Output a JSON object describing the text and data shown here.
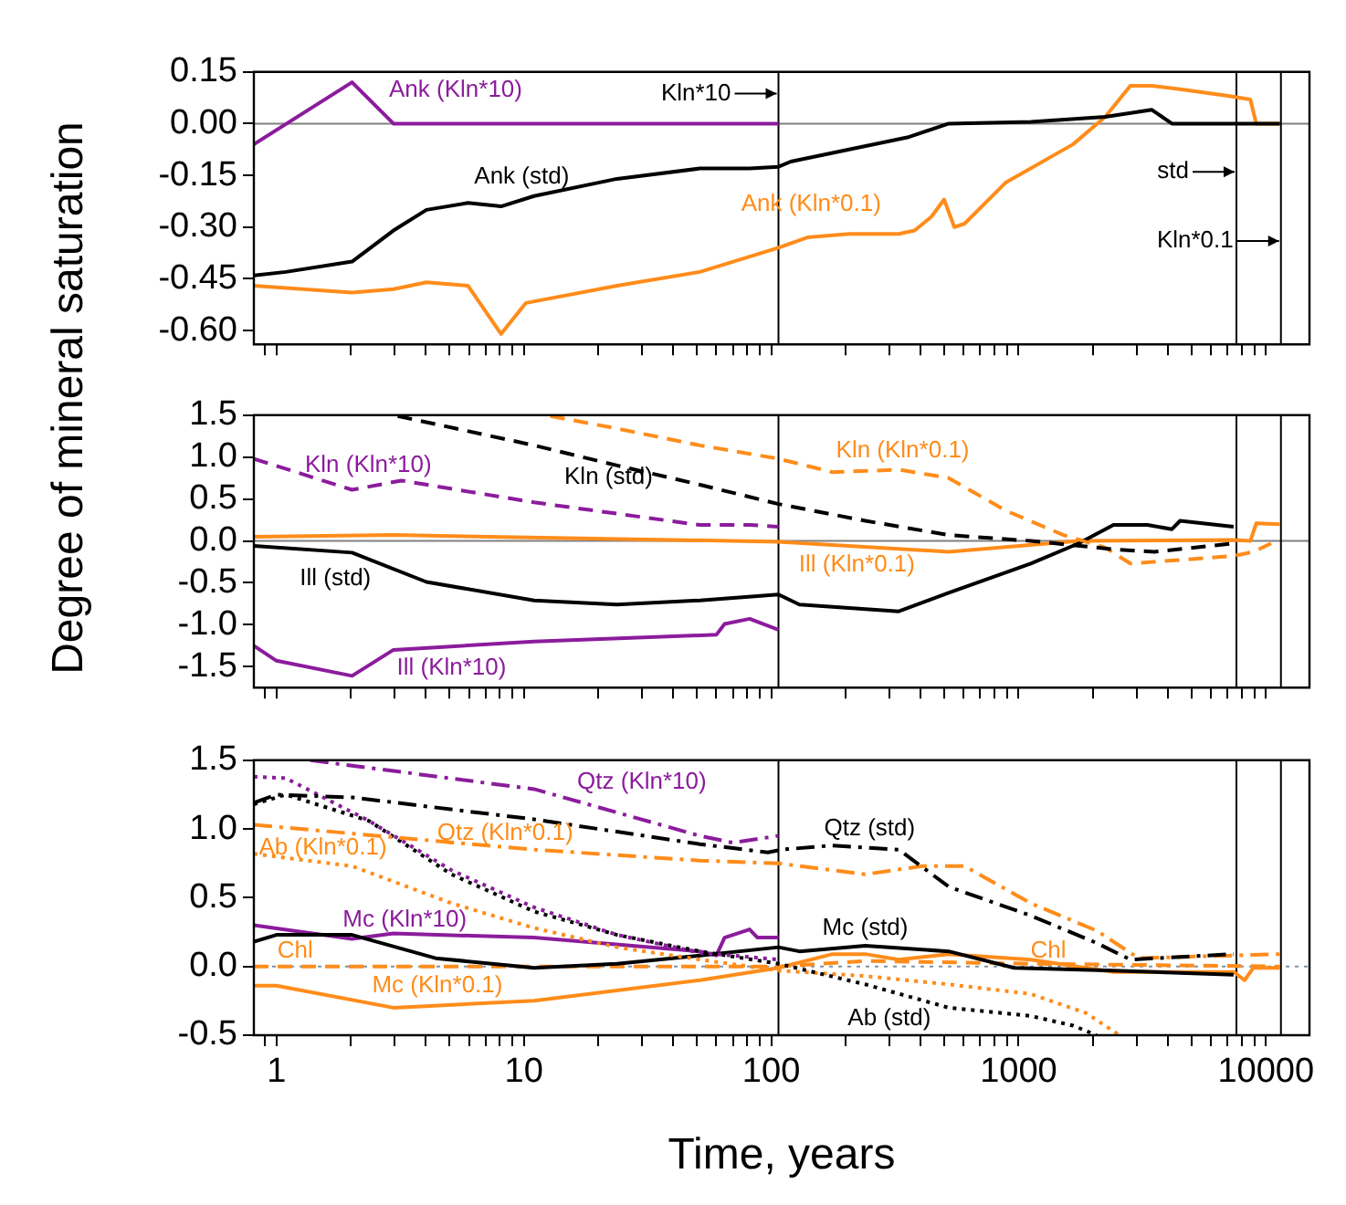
{
  "chart_data": [
    {
      "type": "line",
      "ylabel": "Degree of mineral saturation",
      "xlim": [
        0.81,
        15000
      ],
      "log": "x",
      "tick_labels": "y",
      "ylim": [
        -0.64,
        0.15
      ],
      "xticks": [
        {
          "value": 0.9,
          "label": null
        },
        1,
        {
          "value": 2,
          "label": null
        },
        {
          "value": 3,
          "label": null
        },
        {
          "value": 4,
          "label": null
        },
        {
          "value": 5,
          "label": null
        },
        {
          "value": 6,
          "label": null
        },
        {
          "value": 7,
          "label": null
        },
        {
          "value": 8,
          "label": null
        },
        {
          "value": 9,
          "label": null
        },
        10,
        {
          "value": 20,
          "label": null
        },
        {
          "value": 30,
          "label": null
        },
        {
          "value": 40,
          "label": null
        },
        {
          "value": 50,
          "label": null
        },
        {
          "value": 60,
          "label": null
        },
        {
          "value": 70,
          "label": null
        },
        {
          "value": 80,
          "label": null
        },
        {
          "value": 90,
          "label": null
        },
        100,
        {
          "value": 200,
          "label": null
        },
        {
          "value": 300,
          "label": null
        },
        {
          "value": 400,
          "label": null
        },
        {
          "value": 500,
          "label": null
        },
        {
          "value": 600,
          "label": null
        },
        {
          "value": 700,
          "label": null
        },
        {
          "value": 800,
          "label": null
        },
        {
          "value": 900,
          "label": null
        },
        1000,
        {
          "value": 2000,
          "label": null
        },
        {
          "value": 3000,
          "label": null
        },
        {
          "value": 4000,
          "label": null
        },
        {
          "value": 5000,
          "label": null
        },
        {
          "value": 6000,
          "label": null
        },
        {
          "value": 7000,
          "label": null
        },
        {
          "value": 8000,
          "label": null
        },
        {
          "value": 9000,
          "label": null
        },
        10000
      ],
      "yticks": [
        {
          "value": 0.15,
          "label": "0.15"
        },
        {
          "value": 0,
          "label": "0.00"
        },
        {
          "value": -0.15,
          "label": "-0.15"
        },
        {
          "value": -0.3,
          "label": "-0.30"
        },
        {
          "value": -0.45,
          "label": "-0.45"
        },
        {
          "value": -0.6,
          "label": "-0.60"
        }
      ],
      "ref_lines": [
        {
          "axis": "y",
          "value": 0,
          "color": "#808080"
        },
        {
          "axis": "x",
          "value": 107,
          "label": "Kln*10",
          "color": "#000000"
        },
        {
          "axis": "x",
          "value": 7600,
          "label": "std",
          "color": "#000000"
        },
        {
          "axis": "x",
          "value": 11500,
          "label": "Kln*0.1",
          "color": "#000000"
        }
      ],
      "series": [
        {
          "name": "Ank (Kln*10)",
          "color": "#8b1c9c",
          "line_style": "solid",
          "x": [
            0.81,
            2.02,
            2.97,
            107
          ],
          "values": [
            -0.06,
            0.12,
            0,
            0
          ]
        },
        {
          "name": "Ank (std)",
          "color": "#000000",
          "line_style": "solid",
          "x": [
            0.81,
            1.09,
            2.02,
            2.97,
            4.04,
            5.94,
            8.09,
            11,
            23.8,
            51.5,
            81.8,
            107,
            120,
            177,
            355,
            522,
            1120,
            2240,
            3460,
            4170,
            11400
          ],
          "values": [
            -0.44,
            -0.43,
            -0.4,
            -0.31,
            -0.25,
            -0.23,
            -0.24,
            -0.21,
            -0.16,
            -0.13,
            -0.13,
            -0.125,
            -0.11,
            -0.085,
            -0.04,
            0,
            0.005,
            0.02,
            0.04,
            0,
            0
          ]
        },
        {
          "name": "Ank (Kln*0.1)",
          "color": "#ff8c1a",
          "line_style": "solid",
          "x": [
            0.81,
            2.02,
            2.97,
            4.04,
            5.94,
            8.09,
            10.2,
            23.8,
            51.5,
            107,
            140,
            207,
            328,
            380,
            444,
            500,
            550,
            605,
            890,
            1660,
            2240,
            2830,
            3460,
            4500,
            7130,
            8650,
            9140,
            11400
          ],
          "values": [
            -0.47,
            -0.49,
            -0.48,
            -0.46,
            -0.47,
            -0.61,
            -0.52,
            -0.47,
            -0.43,
            -0.36,
            -0.33,
            -0.32,
            -0.32,
            -0.31,
            -0.27,
            -0.22,
            -0.3,
            -0.29,
            -0.17,
            -0.06,
            0.02,
            0.11,
            0.11,
            0.1,
            0.08,
            0.07,
            0,
            0
          ]
        }
      ]
    },
    {
      "type": "line",
      "xlim": [
        0.81,
        15000
      ],
      "log": "x",
      "tick_labels": "y",
      "ylim": [
        -1.75,
        1.5
      ],
      "xticks": [
        {
          "value": 0.9,
          "label": null
        },
        1,
        {
          "value": 2,
          "label": null
        },
        {
          "value": 3,
          "label": null
        },
        {
          "value": 4,
          "label": null
        },
        {
          "value": 5,
          "label": null
        },
        {
          "value": 6,
          "label": null
        },
        {
          "value": 7,
          "label": null
        },
        {
          "value": 8,
          "label": null
        },
        {
          "value": 9,
          "label": null
        },
        10,
        {
          "value": 20,
          "label": null
        },
        {
          "value": 30,
          "label": null
        },
        {
          "value": 40,
          "label": null
        },
        {
          "value": 50,
          "label": null
        },
        {
          "value": 60,
          "label": null
        },
        {
          "value": 70,
          "label": null
        },
        {
          "value": 80,
          "label": null
        },
        {
          "value": 90,
          "label": null
        },
        100,
        {
          "value": 200,
          "label": null
        },
        {
          "value": 300,
          "label": null
        },
        {
          "value": 400,
          "label": null
        },
        {
          "value": 500,
          "label": null
        },
        {
          "value": 600,
          "label": null
        },
        {
          "value": 700,
          "label": null
        },
        {
          "value": 800,
          "label": null
        },
        {
          "value": 900,
          "label": null
        },
        1000,
        {
          "value": 2000,
          "label": null
        },
        {
          "value": 3000,
          "label": null
        },
        {
          "value": 4000,
          "label": null
        },
        {
          "value": 5000,
          "label": null
        },
        {
          "value": 6000,
          "label": null
        },
        {
          "value": 7000,
          "label": null
        },
        {
          "value": 8000,
          "label": null
        },
        {
          "value": 9000,
          "label": null
        },
        10000
      ],
      "yticks": [
        1.5,
        {
          "value": 1,
          "label": "1.0"
        },
        0.5,
        {
          "value": 0,
          "label": "0.0"
        },
        -0.5,
        {
          "value": -1,
          "label": "-1.0"
        },
        -1.5
      ],
      "ref_lines": [
        {
          "axis": "y",
          "value": 0,
          "color": "#808080"
        },
        {
          "axis": "x",
          "value": 107,
          "color": "#000000"
        },
        {
          "axis": "x",
          "value": 7600,
          "color": "#000000"
        },
        {
          "axis": "x",
          "value": 11500,
          "color": "#000000"
        }
      ],
      "series": [
        {
          "name": "Kln (std)",
          "color": "#000000",
          "line_style": "dashed",
          "x": [
            3.09,
            11,
            23.8,
            51.5,
            107,
            240,
            522,
            1120,
            2420,
            3540,
            7400
          ],
          "values": [
            1.49,
            1.14,
            0.9,
            0.67,
            0.44,
            0.24,
            0.07,
            0,
            -0.1,
            -0.13,
            -0.03
          ]
        },
        {
          "name": "Kln (Kln*0.1)",
          "color": "#ff8c1a",
          "line_style": "dashed",
          "x": [
            12.8,
            23.8,
            51.5,
            107,
            177,
            328,
            522,
            890,
            1520,
            2240,
            2830,
            7400,
            8900,
            10500
          ],
          "values": [
            1.49,
            1.34,
            1.14,
            0.98,
            0.82,
            0.85,
            0.75,
            0.36,
            0.07,
            -0.08,
            -0.27,
            -0.18,
            -0.13,
            -0.03
          ]
        },
        {
          "name": "Kln (Kln*10)",
          "color": "#8b1c9c",
          "line_style": "dashed",
          "x": [
            0.81,
            2.02,
            3.2,
            11,
            51.5,
            81.8,
            107
          ],
          "values": [
            0.98,
            0.61,
            0.72,
            0.46,
            0.19,
            0.19,
            0.17
          ]
        },
        {
          "name": "Ill (std)",
          "color": "#000000",
          "line_style": "solid",
          "x": [
            0.81,
            2.02,
            4.04,
            11,
            23.8,
            51.5,
            107,
            130,
            328,
            522,
            1120,
            1750,
            2420,
            3320,
            4170,
            4500,
            7400
          ],
          "values": [
            -0.06,
            -0.14,
            -0.49,
            -0.71,
            -0.76,
            -0.71,
            -0.64,
            -0.76,
            -0.84,
            -0.62,
            -0.27,
            -0.03,
            0.19,
            0.19,
            0.14,
            0.24,
            0.17
          ]
        },
        {
          "name": "Ill (Kln*0.1)",
          "color": "#ff8c1a",
          "line_style": "solid",
          "x": [
            0.81,
            2.97,
            107,
            522,
            1750,
            7400,
            8650,
            9140,
            11400
          ],
          "values": [
            0.05,
            0.07,
            -0.01,
            -0.13,
            0,
            0.01,
            0,
            0.21,
            0.2
          ]
        },
        {
          "name": "Ill (Kln*10)",
          "color": "#8b1c9c",
          "line_style": "solid",
          "x": [
            0.81,
            1,
            2.02,
            2.97,
            11,
            60,
            64.8,
            81.8,
            107
          ],
          "values": [
            -1.25,
            -1.43,
            -1.61,
            -1.3,
            -1.2,
            -1.12,
            -0.99,
            -0.93,
            -1.06
          ]
        }
      ]
    },
    {
      "type": "line",
      "xlabel": "Time, years",
      "xlim": [
        0.81,
        15000
      ],
      "log": "x",
      "ylim": [
        -0.5,
        1.5
      ],
      "xticks": [
        {
          "value": 0.9,
          "label": null
        },
        1,
        {
          "value": 2,
          "label": null
        },
        {
          "value": 3,
          "label": null
        },
        {
          "value": 4,
          "label": null
        },
        {
          "value": 5,
          "label": null
        },
        {
          "value": 6,
          "label": null
        },
        {
          "value": 7,
          "label": null
        },
        {
          "value": 8,
          "label": null
        },
        {
          "value": 9,
          "label": null
        },
        10,
        {
          "value": 20,
          "label": null
        },
        {
          "value": 30,
          "label": null
        },
        {
          "value": 40,
          "label": null
        },
        {
          "value": 50,
          "label": null
        },
        {
          "value": 60,
          "label": null
        },
        {
          "value": 70,
          "label": null
        },
        {
          "value": 80,
          "label": null
        },
        {
          "value": 90,
          "label": null
        },
        100,
        {
          "value": 200,
          "label": null
        },
        {
          "value": 300,
          "label": null
        },
        {
          "value": 400,
          "label": null
        },
        {
          "value": 500,
          "label": null
        },
        {
          "value": 600,
          "label": null
        },
        {
          "value": 700,
          "label": null
        },
        {
          "value": 800,
          "label": null
        },
        {
          "value": 900,
          "label": null
        },
        1000,
        {
          "value": 2000,
          "label": null
        },
        {
          "value": 3000,
          "label": null
        },
        {
          "value": 4000,
          "label": null
        },
        {
          "value": 5000,
          "label": null
        },
        {
          "value": 6000,
          "label": null
        },
        {
          "value": 7000,
          "label": null
        },
        {
          "value": 8000,
          "label": null
        },
        {
          "value": 9000,
          "label": null
        },
        10000
      ],
      "yticks": [
        1.5,
        {
          "value": 1,
          "label": "1.0"
        },
        0.5,
        {
          "value": 0,
          "label": "0.0"
        },
        -0.5
      ],
      "ref_lines": [
        {
          "axis": "y",
          "value": 0,
          "color": "#8090a0",
          "line_style": "dotted"
        },
        {
          "axis": "x",
          "value": 107,
          "color": "#000000"
        },
        {
          "axis": "x",
          "value": 7600,
          "color": "#000000"
        },
        {
          "axis": "x",
          "value": 11500,
          "color": "#000000"
        }
      ],
      "series": [
        {
          "name": "Qtz (std)",
          "color": "#000000",
          "line_style": "dashdot",
          "x": [
            0.81,
            1,
            2.02,
            11,
            51.5,
            97,
            110,
            177,
            328,
            522,
            1120,
            2070,
            2830,
            7400
          ],
          "values": [
            1.19,
            1.25,
            1.23,
            1.07,
            0.89,
            0.83,
            0.85,
            0.88,
            0.85,
            0.58,
            0.37,
            0.17,
            0.05,
            0.09
          ]
        },
        {
          "name": "Qtz (Kln*0.1)",
          "color": "#ff8c1a",
          "line_style": "dashdot",
          "x": [
            0.81,
            11,
            51.5,
            107,
            240,
            408,
            605,
            1120,
            2070,
            3060,
            11400
          ],
          "values": [
            1.03,
            0.85,
            0.77,
            0.75,
            0.67,
            0.73,
            0.73,
            0.46,
            0.26,
            0.06,
            0.09
          ]
        },
        {
          "name": "Qtz (Kln*10)",
          "color": "#8b1c9c",
          "line_style": "dashdot",
          "x": [
            1.37,
            11,
            51.5,
            70,
            107
          ],
          "values": [
            1.5,
            1.29,
            0.95,
            0.9,
            0.95
          ]
        },
        {
          "name": "Ab (std)",
          "color": "#000000",
          "line_style": "dotted",
          "x": [
            0.81,
            1.09,
            2.36,
            5.1,
            11,
            23.8,
            51.5,
            107,
            240,
            522,
            1120,
            1660,
            2070
          ],
          "values": [
            1.18,
            1.25,
            1.06,
            0.67,
            0.4,
            0.23,
            0.11,
            0.02,
            -0.13,
            -0.3,
            -0.36,
            -0.43,
            -0.5
          ]
        },
        {
          "name": "Ab (Kln*0.1)",
          "color": "#ff8c1a",
          "line_style": "dotted",
          "x": [
            0.81,
            2.02,
            5.1,
            11,
            23.8,
            51.5,
            107,
            240,
            522,
            1120,
            1880,
            2560
          ],
          "values": [
            0.82,
            0.73,
            0.46,
            0.28,
            0.14,
            0.05,
            -0.03,
            -0.07,
            -0.13,
            -0.2,
            -0.34,
            -0.5
          ]
        },
        {
          "color": "#8b1c9c",
          "line_style": "dotted",
          "x": [
            0.81,
            1.09,
            2.36,
            5.1,
            11,
            23.8,
            51.5,
            107
          ],
          "values": [
            1.38,
            1.37,
            1.06,
            0.7,
            0.43,
            0.23,
            0.1,
            0.05
          ]
        },
        {
          "name": "Mc (std)",
          "color": "#000000",
          "line_style": "solid",
          "x": [
            0.81,
            1,
            2.02,
            4.4,
            11,
            23.8,
            51.5,
            107,
            130,
            240,
            522,
            960,
            2420,
            7400
          ],
          "values": [
            0.18,
            0.23,
            0.23,
            0.06,
            -0.01,
            0.02,
            0.08,
            0.14,
            0.11,
            0.15,
            0.11,
            -0.01,
            -0.03,
            -0.06
          ]
        },
        {
          "name": "Mc (Kln*0.1)",
          "color": "#ff8c1a",
          "line_style": "solid",
          "x": [
            0.81,
            1,
            2.97,
            11,
            51.5,
            107,
            177,
            240,
            328,
            522,
            1120,
            2420,
            7400,
            8200,
            8900,
            11400
          ],
          "values": [
            -0.14,
            -0.14,
            -0.3,
            -0.25,
            -0.1,
            -0.01,
            0.09,
            0.09,
            0.05,
            0.09,
            0.05,
            -0.04,
            -0.04,
            -0.1,
            -0.01,
            -0.01
          ]
        },
        {
          "name": "Mc (Kln*10)",
          "color": "#8b1c9c",
          "line_style": "solid",
          "x": [
            0.81,
            2.02,
            2.97,
            11,
            51.5,
            60,
            64.8,
            81.8,
            88,
            107
          ],
          "values": [
            0.3,
            0.2,
            0.24,
            0.21,
            0.11,
            0.08,
            0.21,
            0.27,
            0.21,
            0.21
          ]
        },
        {
          "name": "Chl",
          "color": "#ff8c1a",
          "line_style": "dashed",
          "x": [
            0.81,
            107,
            240,
            1120,
            11400
          ],
          "values": [
            0,
            0,
            0.04,
            0.02,
            0
          ]
        }
      ]
    }
  ]
}
